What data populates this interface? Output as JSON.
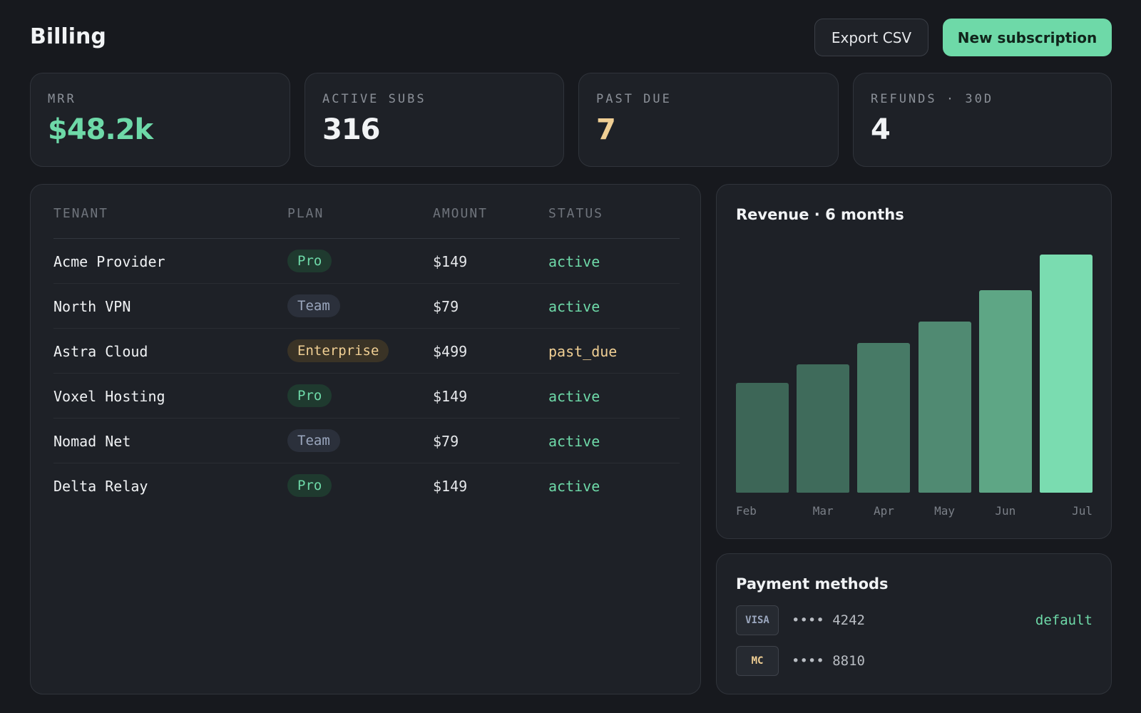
{
  "header": {
    "title": "Billing",
    "export_label": "Export CSV",
    "new_label": "New subscription"
  },
  "stats": [
    {
      "label": "MRR",
      "value": "$48.2k",
      "color": "#6ed9a8"
    },
    {
      "label": "ACTIVE SUBS",
      "value": "316",
      "color": "#f1f3f5"
    },
    {
      "label": "PAST DUE",
      "value": "7",
      "color": "#f0cf94"
    },
    {
      "label": "REFUNDS · 30D",
      "value": "4",
      "color": "#f1f3f5"
    }
  ],
  "table": {
    "headers": {
      "tenant": "TENANT",
      "plan": "PLAN",
      "amount": "AMOUNT",
      "status": "STATUS"
    },
    "rows": [
      {
        "tenant": "Acme Provider",
        "plan": "Pro",
        "amount": "$149",
        "status": "active"
      },
      {
        "tenant": "North VPN",
        "plan": "Team",
        "amount": "$79",
        "status": "active"
      },
      {
        "tenant": "Astra Cloud",
        "plan": "Enterprise",
        "amount": "$499",
        "status": "past_due"
      },
      {
        "tenant": "Voxel Hosting",
        "plan": "Pro",
        "amount": "$149",
        "status": "active"
      },
      {
        "tenant": "Nomad Net",
        "plan": "Team",
        "amount": "$79",
        "status": "active"
      },
      {
        "tenant": "Delta Relay",
        "plan": "Pro",
        "amount": "$149",
        "status": "active"
      }
    ]
  },
  "revenue": {
    "title": "Revenue · 6 months",
    "chart_data": {
      "type": "bar",
      "categories": [
        "Feb",
        "Mar",
        "Apr",
        "May",
        "Jun",
        "Jul"
      ],
      "values": [
        0.46,
        0.54,
        0.63,
        0.72,
        0.85,
        1.0
      ],
      "colors": [
        "#3d6657",
        "#3f6b5b",
        "#477a66",
        "#508a72",
        "#5ea685",
        "#7adcb0"
      ]
    }
  },
  "payments": {
    "title": "Payment methods",
    "methods": [
      {
        "brand": "VISA",
        "number": "•••• 4242",
        "tag": "default",
        "brand_color": "#9aa6bd"
      },
      {
        "brand": "MC",
        "number": "•••• 8810",
        "tag": "",
        "brand_color": "#f0cf94"
      }
    ]
  }
}
